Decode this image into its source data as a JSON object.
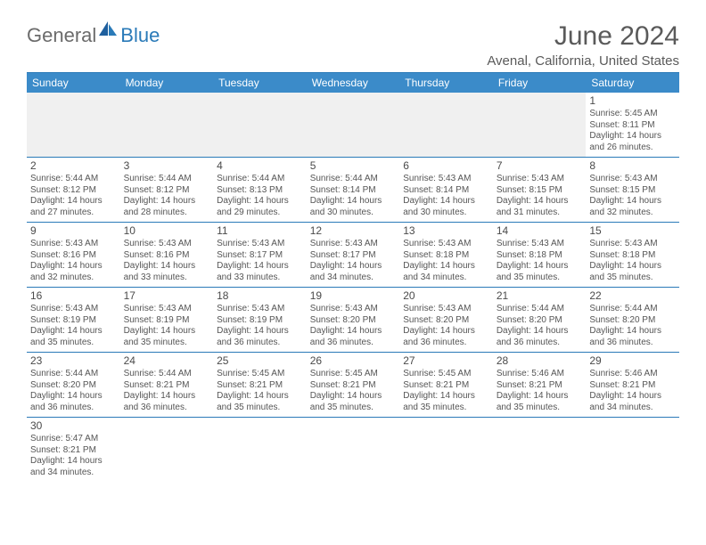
{
  "logo": {
    "text1": "General",
    "text2": "Blue"
  },
  "title": "June 2024",
  "location": "Avenal, California, United States",
  "colors": {
    "header_bg": "#3b8bc9",
    "rule": "#2a7ab8",
    "text": "#555555",
    "logo_gray": "#6b6b6b",
    "logo_blue": "#2a7ab8",
    "first_row_bg": "#f0f0f0"
  },
  "weekdays": [
    "Sunday",
    "Monday",
    "Tuesday",
    "Wednesday",
    "Thursday",
    "Friday",
    "Saturday"
  ],
  "weeks": [
    [
      null,
      null,
      null,
      null,
      null,
      null,
      {
        "n": "1",
        "sr": "5:45 AM",
        "ss": "8:11 PM",
        "dl": "14 hours and 26 minutes."
      }
    ],
    [
      {
        "n": "2",
        "sr": "5:44 AM",
        "ss": "8:12 PM",
        "dl": "14 hours and 27 minutes."
      },
      {
        "n": "3",
        "sr": "5:44 AM",
        "ss": "8:12 PM",
        "dl": "14 hours and 28 minutes."
      },
      {
        "n": "4",
        "sr": "5:44 AM",
        "ss": "8:13 PM",
        "dl": "14 hours and 29 minutes."
      },
      {
        "n": "5",
        "sr": "5:44 AM",
        "ss": "8:14 PM",
        "dl": "14 hours and 30 minutes."
      },
      {
        "n": "6",
        "sr": "5:43 AM",
        "ss": "8:14 PM",
        "dl": "14 hours and 30 minutes."
      },
      {
        "n": "7",
        "sr": "5:43 AM",
        "ss": "8:15 PM",
        "dl": "14 hours and 31 minutes."
      },
      {
        "n": "8",
        "sr": "5:43 AM",
        "ss": "8:15 PM",
        "dl": "14 hours and 32 minutes."
      }
    ],
    [
      {
        "n": "9",
        "sr": "5:43 AM",
        "ss": "8:16 PM",
        "dl": "14 hours and 32 minutes."
      },
      {
        "n": "10",
        "sr": "5:43 AM",
        "ss": "8:16 PM",
        "dl": "14 hours and 33 minutes."
      },
      {
        "n": "11",
        "sr": "5:43 AM",
        "ss": "8:17 PM",
        "dl": "14 hours and 33 minutes."
      },
      {
        "n": "12",
        "sr": "5:43 AM",
        "ss": "8:17 PM",
        "dl": "14 hours and 34 minutes."
      },
      {
        "n": "13",
        "sr": "5:43 AM",
        "ss": "8:18 PM",
        "dl": "14 hours and 34 minutes."
      },
      {
        "n": "14",
        "sr": "5:43 AM",
        "ss": "8:18 PM",
        "dl": "14 hours and 35 minutes."
      },
      {
        "n": "15",
        "sr": "5:43 AM",
        "ss": "8:18 PM",
        "dl": "14 hours and 35 minutes."
      }
    ],
    [
      {
        "n": "16",
        "sr": "5:43 AM",
        "ss": "8:19 PM",
        "dl": "14 hours and 35 minutes."
      },
      {
        "n": "17",
        "sr": "5:43 AM",
        "ss": "8:19 PM",
        "dl": "14 hours and 35 minutes."
      },
      {
        "n": "18",
        "sr": "5:43 AM",
        "ss": "8:19 PM",
        "dl": "14 hours and 36 minutes."
      },
      {
        "n": "19",
        "sr": "5:43 AM",
        "ss": "8:20 PM",
        "dl": "14 hours and 36 minutes."
      },
      {
        "n": "20",
        "sr": "5:43 AM",
        "ss": "8:20 PM",
        "dl": "14 hours and 36 minutes."
      },
      {
        "n": "21",
        "sr": "5:44 AM",
        "ss": "8:20 PM",
        "dl": "14 hours and 36 minutes."
      },
      {
        "n": "22",
        "sr": "5:44 AM",
        "ss": "8:20 PM",
        "dl": "14 hours and 36 minutes."
      }
    ],
    [
      {
        "n": "23",
        "sr": "5:44 AM",
        "ss": "8:20 PM",
        "dl": "14 hours and 36 minutes."
      },
      {
        "n": "24",
        "sr": "5:44 AM",
        "ss": "8:21 PM",
        "dl": "14 hours and 36 minutes."
      },
      {
        "n": "25",
        "sr": "5:45 AM",
        "ss": "8:21 PM",
        "dl": "14 hours and 35 minutes."
      },
      {
        "n": "26",
        "sr": "5:45 AM",
        "ss": "8:21 PM",
        "dl": "14 hours and 35 minutes."
      },
      {
        "n": "27",
        "sr": "5:45 AM",
        "ss": "8:21 PM",
        "dl": "14 hours and 35 minutes."
      },
      {
        "n": "28",
        "sr": "5:46 AM",
        "ss": "8:21 PM",
        "dl": "14 hours and 35 minutes."
      },
      {
        "n": "29",
        "sr": "5:46 AM",
        "ss": "8:21 PM",
        "dl": "14 hours and 34 minutes."
      }
    ],
    [
      {
        "n": "30",
        "sr": "5:47 AM",
        "ss": "8:21 PM",
        "dl": "14 hours and 34 minutes."
      },
      null,
      null,
      null,
      null,
      null,
      null
    ]
  ],
  "labels": {
    "sunrise": "Sunrise:",
    "sunset": "Sunset:",
    "daylight": "Daylight:"
  }
}
